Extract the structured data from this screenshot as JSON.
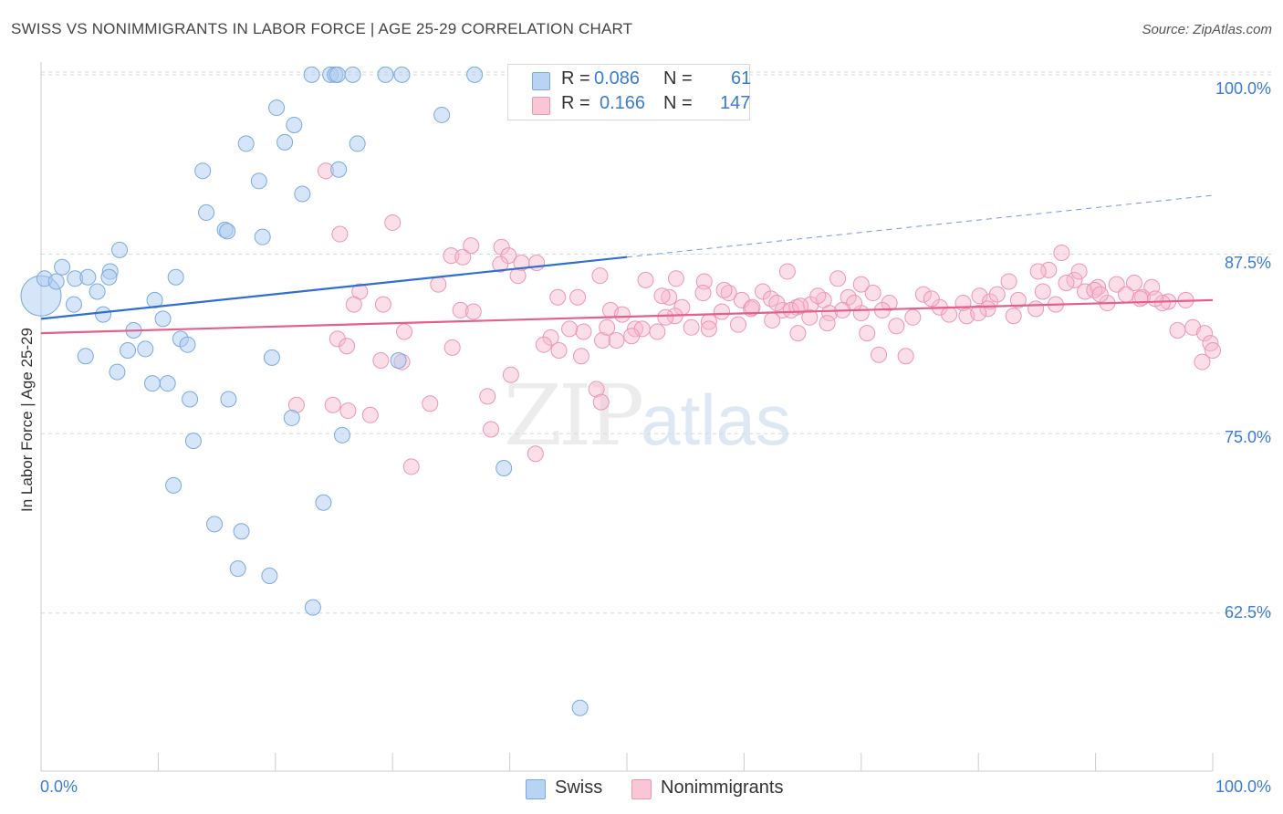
{
  "title": "SWISS VS NONIMMIGRANTS IN LABOR FORCE | AGE 25-29 CORRELATION CHART",
  "source": "Source: ZipAtlas.com",
  "watermark": {
    "zip": "ZIP",
    "atlas": "atlas"
  },
  "legend": {
    "r_label": "R =",
    "n_label": "N =",
    "rows": [
      {
        "series": "Swiss",
        "r": "0.086",
        "n": "61"
      },
      {
        "series": "Nonimmigrants",
        "r": "0.166",
        "n": "147"
      }
    ]
  },
  "bottom_legend": [
    "Swiss",
    "Nonimmigrants"
  ],
  "colors": {
    "swiss_fill": "#aecbf0",
    "swiss_stroke": "#7aaae0",
    "swiss_line": "#2f6fd0",
    "non_fill": "#f6b8cc",
    "non_stroke": "#ee95b2",
    "non_line": "#e2608a",
    "tick_text": "#3a7bd5",
    "grid": "#d8d8d8"
  },
  "chart_data": {
    "type": "scatter",
    "title": "SWISS VS NONIMMIGRANTS IN LABOR FORCE | AGE 25-29 CORRELATION CHART",
    "xlabel": "",
    "ylabel": "In Labor Force | Age 25-29",
    "xlim": [
      0,
      100
    ],
    "ylim": [
      51.5,
      101.2
    ],
    "x_tick_labels": [
      "0.0%",
      "100.0%"
    ],
    "y_ticks": [
      100.0,
      87.5,
      75.0,
      62.5
    ],
    "y_tick_labels": [
      "100.0%",
      "87.5%",
      "75.0%",
      "62.5%"
    ],
    "grid": "horizontal dashed",
    "legend_position": "top-center",
    "series": [
      {
        "name": "Swiss",
        "r": 0.086,
        "n": 61,
        "trend": {
          "x0": 0,
          "y0": 83.0,
          "x1": 50,
          "y1": 87.3,
          "dashed_to": 100,
          "dashed_y": 91.6
        },
        "points": [
          [
            0.0,
            84.6,
            3
          ],
          [
            0.3,
            85.8,
            1
          ],
          [
            1.3,
            85.6,
            1
          ],
          [
            1.8,
            86.6,
            1
          ],
          [
            2.9,
            85.8,
            1
          ],
          [
            4.0,
            85.9,
            1
          ],
          [
            5.9,
            86.3,
            1
          ],
          [
            5.8,
            85.9,
            1
          ],
          [
            2.8,
            84.0,
            1
          ],
          [
            4.8,
            84.9,
            1
          ],
          [
            5.3,
            83.3,
            1
          ],
          [
            6.7,
            87.8,
            1
          ],
          [
            7.9,
            82.2,
            1
          ],
          [
            9.7,
            84.3,
            1
          ],
          [
            10.4,
            83.0,
            1
          ],
          [
            11.5,
            85.9,
            1
          ],
          [
            3.8,
            80.4,
            1
          ],
          [
            6.5,
            79.3,
            1
          ],
          [
            7.4,
            80.8,
            1
          ],
          [
            8.9,
            80.9,
            1
          ],
          [
            9.5,
            78.5,
            1
          ],
          [
            10.8,
            78.5,
            1
          ],
          [
            11.9,
            81.6,
            1
          ],
          [
            12.5,
            81.2,
            1
          ],
          [
            12.7,
            77.4,
            1
          ],
          [
            13.0,
            74.5,
            1
          ],
          [
            14.1,
            90.4,
            1
          ],
          [
            15.7,
            89.2,
            1
          ],
          [
            15.9,
            89.1,
            1
          ],
          [
            16.0,
            77.4,
            1
          ],
          [
            13.8,
            93.3,
            1
          ],
          [
            17.5,
            95.2,
            1
          ],
          [
            18.6,
            92.6,
            1
          ],
          [
            18.9,
            88.7,
            1
          ],
          [
            19.7,
            80.3,
            1
          ],
          [
            20.1,
            97.7,
            1
          ],
          [
            20.8,
            95.3,
            1
          ],
          [
            21.6,
            96.5,
            1
          ],
          [
            22.3,
            91.7,
            1
          ],
          [
            21.4,
            76.1,
            1
          ],
          [
            23.1,
            100.0,
            1
          ],
          [
            24.7,
            100.0,
            1
          ],
          [
            25.1,
            100.0,
            1
          ],
          [
            25.3,
            100.0,
            1
          ],
          [
            25.4,
            93.4,
            1
          ],
          [
            25.7,
            74.9,
            1
          ],
          [
            26.6,
            100.0,
            1
          ],
          [
            27.0,
            95.2,
            1
          ],
          [
            29.4,
            100.0,
            1
          ],
          [
            30.8,
            100.0,
            1
          ],
          [
            30.5,
            80.1,
            1
          ],
          [
            34.2,
            97.2,
            1
          ],
          [
            37.0,
            100.0,
            1
          ],
          [
            11.3,
            71.4,
            1
          ],
          [
            14.8,
            68.7,
            1
          ],
          [
            17.1,
            68.2,
            1
          ],
          [
            24.1,
            70.2,
            1
          ],
          [
            16.8,
            65.6,
            1
          ],
          [
            19.5,
            65.1,
            1
          ],
          [
            23.2,
            62.9,
            1
          ],
          [
            39.5,
            72.6,
            1
          ],
          [
            46.0,
            55.9,
            1
          ]
        ]
      },
      {
        "name": "Nonimmigrants",
        "r": 0.166,
        "n": 147,
        "trend": {
          "x0": 0,
          "y0": 82.0,
          "x1": 100,
          "y1": 84.3
        },
        "points": [
          [
            24.3,
            93.3,
            1
          ],
          [
            25.5,
            88.9,
            1
          ],
          [
            30.0,
            89.7,
            1
          ],
          [
            35.0,
            87.4,
            1
          ],
          [
            36.0,
            87.3,
            1
          ],
          [
            36.7,
            88.1,
            1
          ],
          [
            39.3,
            88.0,
            1
          ],
          [
            39.9,
            87.4,
            1
          ],
          [
            41.0,
            86.9,
            1
          ],
          [
            39.2,
            86.8,
            1
          ],
          [
            40.7,
            86.0,
            1
          ],
          [
            42.3,
            86.9,
            1
          ],
          [
            47.7,
            86.0,
            1
          ],
          [
            51.6,
            85.7,
            1
          ],
          [
            56.6,
            85.6,
            1
          ],
          [
            27.2,
            84.9,
            1
          ],
          [
            33.9,
            85.4,
            1
          ],
          [
            26.7,
            84.0,
            1
          ],
          [
            29.2,
            84.0,
            1
          ],
          [
            35.8,
            83.6,
            1
          ],
          [
            44.1,
            84.5,
            1
          ],
          [
            45.8,
            84.5,
            1
          ],
          [
            48.6,
            83.6,
            1
          ],
          [
            49.6,
            83.3,
            1
          ],
          [
            50.7,
            82.3,
            1
          ],
          [
            53.6,
            84.5,
            1
          ],
          [
            54.7,
            83.8,
            1
          ],
          [
            56.5,
            84.8,
            1
          ],
          [
            58.7,
            84.8,
            1
          ],
          [
            59.8,
            84.3,
            1
          ],
          [
            60.6,
            83.7,
            1
          ],
          [
            61.6,
            84.9,
            1
          ],
          [
            62.3,
            84.4,
            1
          ],
          [
            63.3,
            83.6,
            1
          ],
          [
            64.5,
            83.8,
            1
          ],
          [
            65.7,
            84.0,
            1
          ],
          [
            66.8,
            84.3,
            1
          ],
          [
            67.3,
            83.4,
            1
          ],
          [
            68.0,
            85.8,
            1
          ],
          [
            68.9,
            84.5,
            1
          ],
          [
            70.0,
            83.4,
            1
          ],
          [
            71.0,
            84.8,
            1
          ],
          [
            72.4,
            84.1,
            1
          ],
          [
            75.3,
            84.7,
            1
          ],
          [
            76.7,
            83.8,
            1
          ],
          [
            78.7,
            84.1,
            1
          ],
          [
            80.1,
            84.6,
            1
          ],
          [
            81.0,
            84.2,
            1
          ],
          [
            82.6,
            85.6,
            1
          ],
          [
            83.4,
            84.3,
            1
          ],
          [
            85.5,
            84.9,
            1
          ],
          [
            86.6,
            84.0,
            1
          ],
          [
            87.1,
            87.6,
            1
          ],
          [
            88.2,
            85.7,
            1
          ],
          [
            89.1,
            84.9,
            1
          ],
          [
            90.2,
            85.2,
            1
          ],
          [
            91.8,
            85.4,
            1
          ],
          [
            93.3,
            85.5,
            1
          ],
          [
            94.8,
            85.2,
            1
          ],
          [
            96.2,
            84.2,
            1
          ],
          [
            97.7,
            84.3,
            1
          ],
          [
            98.3,
            82.4,
            1
          ],
          [
            99.3,
            82.0,
            1
          ],
          [
            99.8,
            81.3,
            1
          ],
          [
            100.0,
            80.8,
            1
          ],
          [
            99.1,
            80.0,
            1
          ],
          [
            97.0,
            82.2,
            1
          ],
          [
            95.7,
            84.1,
            1
          ],
          [
            94.0,
            84.5,
            1
          ],
          [
            92.6,
            84.7,
            1
          ],
          [
            91.0,
            84.1,
            1
          ],
          [
            89.9,
            85.0,
            1
          ],
          [
            88.6,
            86.3,
            1
          ],
          [
            86.0,
            86.4,
            1
          ],
          [
            84.9,
            83.7,
            1
          ],
          [
            83.0,
            83.2,
            1
          ],
          [
            81.6,
            84.7,
            1
          ],
          [
            80.8,
            83.7,
            1
          ],
          [
            79.0,
            83.2,
            1
          ],
          [
            77.5,
            83.3,
            1
          ],
          [
            76.0,
            84.4,
            1
          ],
          [
            74.4,
            83.1,
            1
          ],
          [
            73.0,
            82.5,
            1
          ],
          [
            71.8,
            83.6,
            1
          ],
          [
            70.5,
            82.0,
            1
          ],
          [
            69.4,
            84.1,
            1
          ],
          [
            68.4,
            83.6,
            1
          ],
          [
            67.1,
            82.7,
            1
          ],
          [
            65.6,
            83.1,
            1
          ],
          [
            64.0,
            83.6,
            1
          ],
          [
            62.4,
            82.9,
            1
          ],
          [
            60.7,
            83.8,
            1
          ],
          [
            59.5,
            82.6,
            1
          ],
          [
            58.1,
            83.5,
            1
          ],
          [
            57.0,
            82.8,
            1
          ],
          [
            55.5,
            82.4,
            1
          ],
          [
            54.1,
            83.2,
            1
          ],
          [
            52.6,
            82.1,
            1
          ],
          [
            51.3,
            82.3,
            1
          ],
          [
            50.4,
            81.8,
            1
          ],
          [
            49.1,
            81.5,
            1
          ],
          [
            47.9,
            81.5,
            1
          ],
          [
            46.3,
            82.1,
            1
          ],
          [
            45.1,
            82.3,
            1
          ],
          [
            43.5,
            81.7,
            1
          ],
          [
            42.9,
            81.2,
            1
          ],
          [
            44.2,
            80.8,
            1
          ],
          [
            35.1,
            81.0,
            1
          ],
          [
            31.0,
            82.1,
            1
          ],
          [
            25.3,
            81.6,
            1
          ],
          [
            26.1,
            81.1,
            1
          ],
          [
            29.0,
            80.1,
            1
          ],
          [
            30.8,
            80.0,
            1
          ],
          [
            47.4,
            78.1,
            1
          ],
          [
            47.8,
            77.2,
            1
          ],
          [
            53.3,
            83.1,
            1
          ],
          [
            54.2,
            85.8,
            1
          ],
          [
            58.3,
            85.0,
            1
          ],
          [
            64.8,
            83.9,
            1
          ],
          [
            66.3,
            84.6,
            1
          ],
          [
            71.5,
            80.5,
            1
          ],
          [
            70.0,
            85.4,
            1
          ],
          [
            73.8,
            80.4,
            1
          ],
          [
            80.0,
            83.4,
            1
          ],
          [
            87.5,
            85.5,
            1
          ],
          [
            93.8,
            84.4,
            1
          ],
          [
            36.9,
            83.5,
            1
          ],
          [
            38.1,
            77.6,
            1
          ],
          [
            40.1,
            79.1,
            1
          ],
          [
            33.2,
            77.1,
            1
          ],
          [
            24.9,
            77.0,
            1
          ],
          [
            21.8,
            77.0,
            1
          ],
          [
            26.2,
            76.6,
            1
          ],
          [
            28.1,
            76.3,
            1
          ],
          [
            38.4,
            75.3,
            1
          ],
          [
            42.2,
            73.6,
            1
          ],
          [
            31.6,
            72.7,
            1
          ],
          [
            46.1,
            80.4,
            1
          ],
          [
            48.3,
            82.4,
            1
          ],
          [
            53.0,
            84.6,
            1
          ],
          [
            57.0,
            82.3,
            1
          ],
          [
            62.8,
            84.1,
            1
          ],
          [
            63.7,
            86.3,
            1
          ],
          [
            64.6,
            82.0,
            1
          ],
          [
            85.1,
            86.3,
            1
          ],
          [
            90.4,
            84.7,
            1
          ],
          [
            95.1,
            84.4,
            1
          ]
        ]
      }
    ]
  }
}
